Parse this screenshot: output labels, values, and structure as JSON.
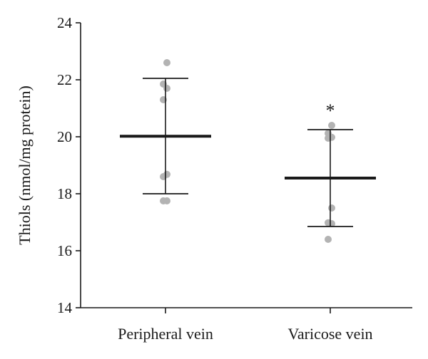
{
  "chart_data": {
    "type": "scatter",
    "title": "",
    "xlabel": "",
    "ylabel": "Thiols (nmol/mg protein)",
    "ylim": [
      14,
      24
    ],
    "yticks": [
      14,
      16,
      18,
      20,
      22,
      24
    ],
    "grid": false,
    "legend": "none",
    "categories": [
      "Peripheral vein",
      "Varicose vein"
    ],
    "groups": [
      {
        "category": "Peripheral vein",
        "mean": 20.02,
        "error_upper": 22.05,
        "error_lower": 18.0,
        "points": [
          22.6,
          21.85,
          21.7,
          21.3,
          18.68,
          18.6,
          17.75,
          17.75
        ]
      },
      {
        "category": "Varicose vein",
        "mean": 18.55,
        "error_upper": 20.25,
        "error_lower": 16.85,
        "annotation": "*",
        "points": [
          20.4,
          20.12,
          19.98,
          19.95,
          17.5,
          16.98,
          16.95,
          16.4
        ]
      }
    ],
    "colors": {
      "points": "#b3b3b3",
      "lines": "#1a1a1a"
    }
  }
}
